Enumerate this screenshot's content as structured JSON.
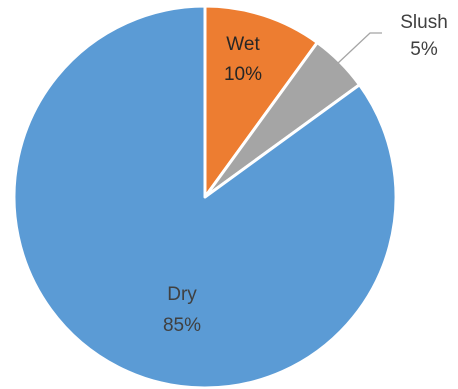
{
  "chart_data": {
    "type": "pie",
    "title": "",
    "slices": [
      {
        "label": "Wet",
        "value": 10,
        "value_label": "10%",
        "color": "#ED7D31"
      },
      {
        "label": "Slush",
        "value": 5,
        "value_label": "5%",
        "color": "#A5A5A5"
      },
      {
        "label": "Dry",
        "value": 85,
        "value_label": "85%",
        "color": "#5B9BD5"
      }
    ],
    "start_angle": "12 o'clock",
    "direction": "clockwise",
    "slice_border_color": "#ffffff",
    "legend": "none"
  }
}
